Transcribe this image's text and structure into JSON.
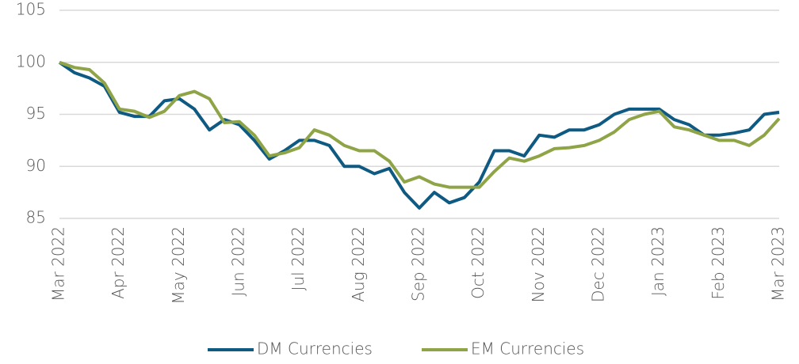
{
  "chart_data": {
    "type": "line",
    "categories": [
      "Mar 2022",
      null,
      null,
      null,
      "Apr 2022",
      null,
      null,
      null,
      "May 2022",
      null,
      null,
      null,
      "Jun 2022",
      null,
      null,
      null,
      "Jul 2022",
      null,
      null,
      null,
      "Aug 2022",
      null,
      null,
      null,
      "Sep 2022",
      null,
      null,
      null,
      "Oct 2022",
      null,
      null,
      null,
      "Nov 2022",
      null,
      null,
      null,
      "Dec 2022",
      null,
      null,
      null,
      "Jan 2023",
      null,
      null,
      null,
      "Feb 2023",
      null,
      null,
      null,
      "Mar 2023"
    ],
    "series": [
      {
        "name": "DM Currencies",
        "color": "#0f5a82",
        "values": [
          100,
          99,
          98.5,
          97.7,
          95.2,
          94.8,
          94.8,
          96.3,
          96.5,
          95.5,
          93.5,
          94.5,
          94,
          92.5,
          90.7,
          91.5,
          92.5,
          92.5,
          92,
          90,
          90,
          89.3,
          89.8,
          87.5,
          86,
          87.5,
          86.5,
          87,
          88.5,
          91.5,
          91.5,
          91,
          93,
          92.8,
          93.5,
          93.5,
          94,
          95,
          95.5,
          95.5,
          95.5,
          94.5,
          94,
          93,
          93,
          93.2,
          93.5,
          95,
          95.2
        ]
      },
      {
        "name": "EM Currencies",
        "color": "#8fa447",
        "values": [
          100,
          99.5,
          99.3,
          98,
          95.5,
          95.3,
          94.7,
          95.3,
          96.8,
          97.2,
          96.5,
          94.2,
          94.3,
          93,
          91,
          91.3,
          91.8,
          93.5,
          93,
          92,
          91.5,
          91.5,
          90.5,
          88.5,
          89,
          88.3,
          88,
          88,
          88,
          89.5,
          90.8,
          90.5,
          91,
          91.7,
          91.8,
          92,
          92.5,
          93.3,
          94.5,
          95,
          95.3,
          93.8,
          93.5,
          93,
          92.5,
          92.5,
          92,
          93,
          94.6
        ]
      }
    ],
    "ylim": [
      85,
      105
    ],
    "yticks": [
      85,
      90,
      95,
      100,
      105
    ],
    "grid": true,
    "legend": "bottom"
  }
}
